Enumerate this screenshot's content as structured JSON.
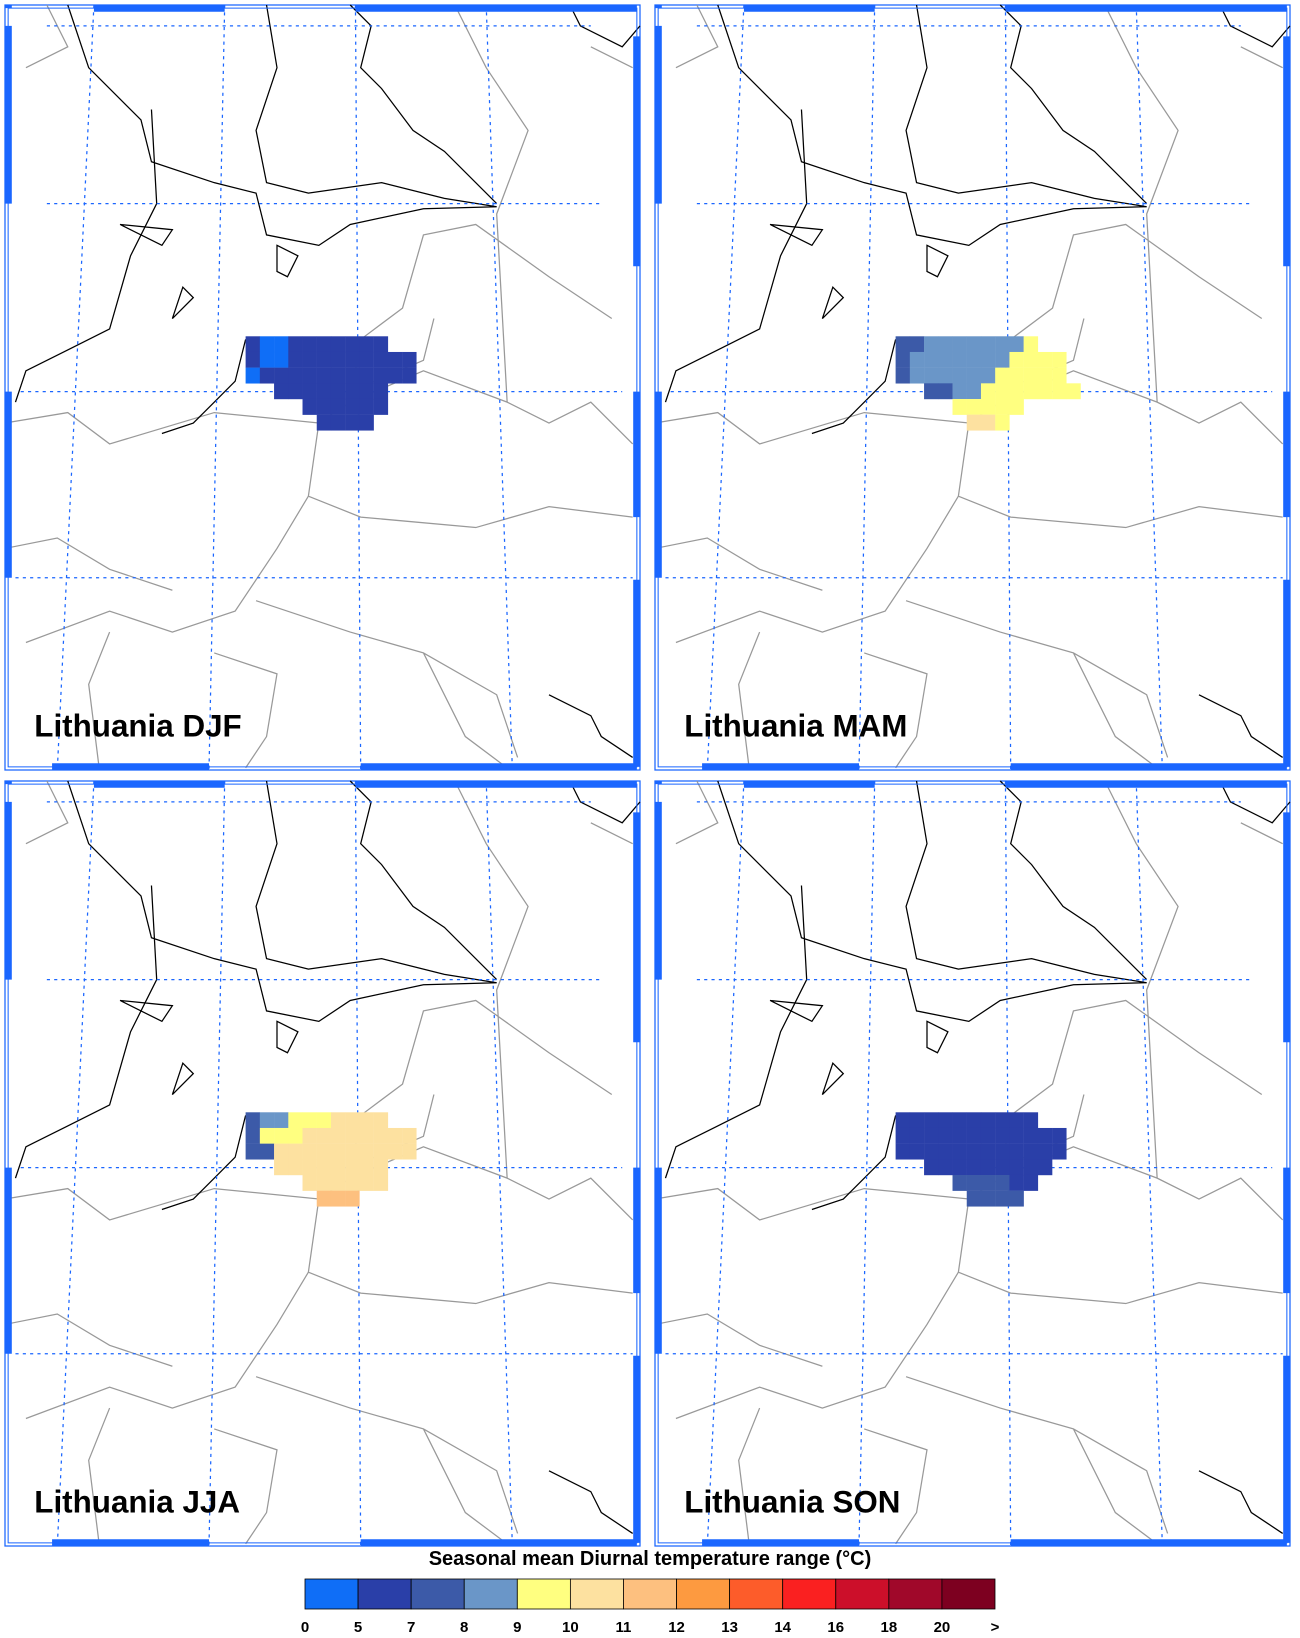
{
  "panels": [
    {
      "title": "Lithuania DJF"
    },
    {
      "title": "Lithuania MAM"
    },
    {
      "title": "Lithuania JJA"
    },
    {
      "title": "Lithuania SON"
    }
  ],
  "colorbar": {
    "title": "Seasonal mean Diurnal temperature range (°C)",
    "labels": [
      "0",
      "5",
      "7",
      "8",
      "9",
      "10",
      "11",
      "12",
      "13",
      "14",
      "16",
      "18",
      "20",
      ">"
    ],
    "colors": [
      "#0f6ef7",
      "#2a3fa8",
      "#3c5aa8",
      "#6a96c8",
      "#ffff80",
      "#fde1a0",
      "#fdc07f",
      "#fd9a40",
      "#fd5c2a",
      "#fa2020",
      "#cc0f2a",
      "#a0082a",
      "#7d0020"
    ]
  }
}
